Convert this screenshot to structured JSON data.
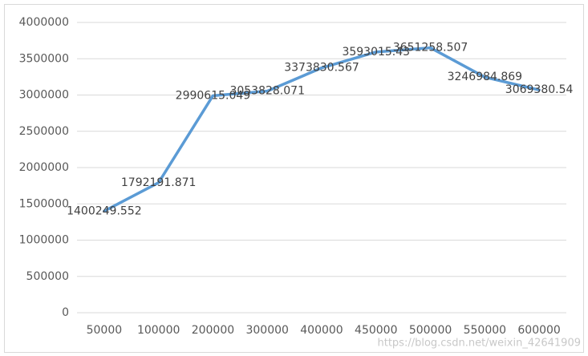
{
  "chart_data": {
    "type": "line",
    "categories": [
      "50000",
      "100000",
      "200000",
      "300000",
      "400000",
      "450000",
      "500000",
      "550000",
      "600000"
    ],
    "values": [
      1400249.552,
      1792191.871,
      2990615.049,
      3053828.071,
      3373830.567,
      3593015.43,
      3651258.507,
      3246984.869,
      3069380.54
    ],
    "color": "#5b9bd5",
    "ylim": [
      0,
      4000000
    ],
    "yticks": [
      0,
      500000,
      1000000,
      1500000,
      2000000,
      2500000,
      3000000,
      3500000,
      4000000
    ],
    "grid": true,
    "watermark": "https://blog.csdn.net/weixin_42641909"
  }
}
